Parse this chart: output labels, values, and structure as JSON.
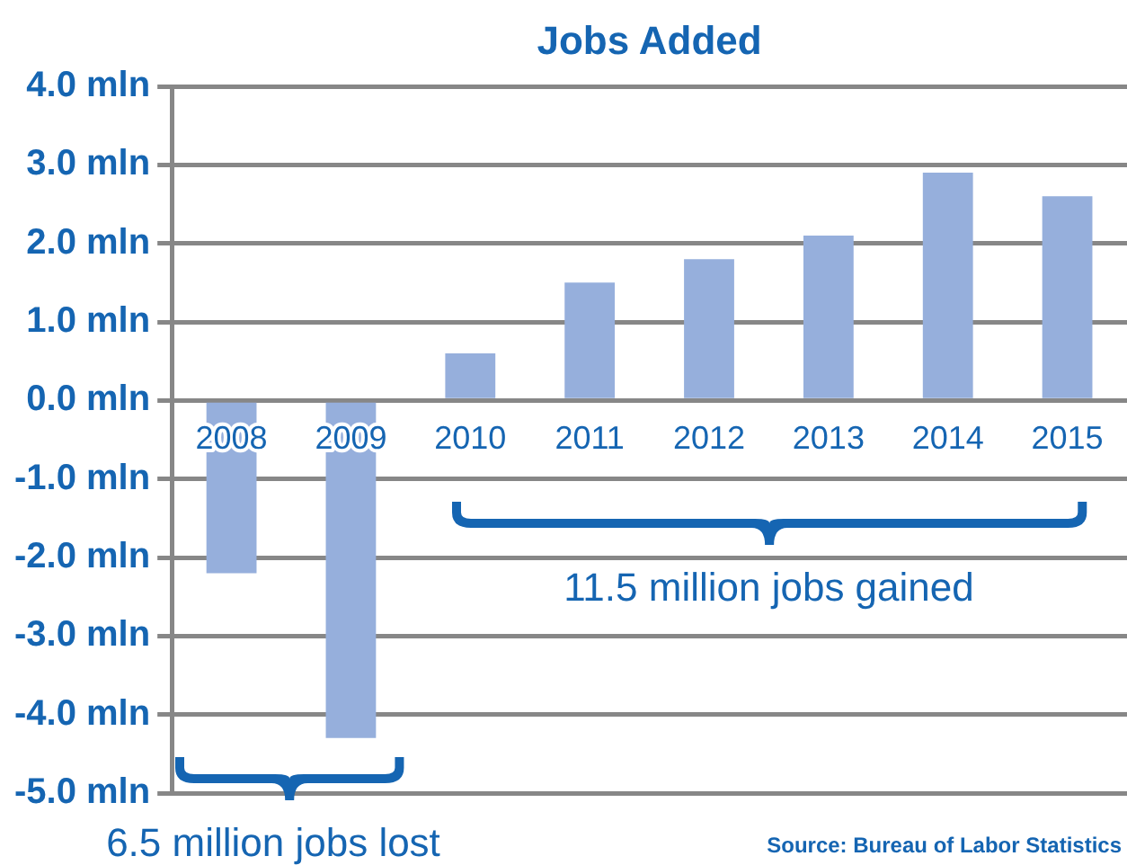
{
  "chart_data": {
    "type": "bar",
    "title": "Jobs Added",
    "categories": [
      "2008",
      "2009",
      "2010",
      "2011",
      "2012",
      "2013",
      "2014",
      "2015"
    ],
    "values": [
      -2.2,
      -4.3,
      0.6,
      1.5,
      1.8,
      2.1,
      2.9,
      2.6
    ],
    "color": "#96afdc",
    "ylim": [
      -5,
      4
    ],
    "yticks": [
      {
        "value": 4,
        "label": "4.0 mln"
      },
      {
        "value": 3,
        "label": "3.0 mln"
      },
      {
        "value": 2,
        "label": "2.0 mln"
      },
      {
        "value": 1,
        "label": "1.0 mln"
      },
      {
        "value": 0,
        "label": "0.0 mln"
      },
      {
        "value": -1,
        "label": "-1.0 mln"
      },
      {
        "value": -2,
        "label": "-2.0 mln"
      },
      {
        "value": -3,
        "label": "-3.0 mln"
      },
      {
        "value": -4,
        "label": "-4.0 mln"
      },
      {
        "value": -5,
        "label": "-5.0 mln"
      }
    ],
    "grid": "y",
    "legend": false,
    "annotations": [
      "6.5 million jobs lost",
      "11.5 million jobs gained",
      "Source: Bureau of Labor Statistics"
    ]
  }
}
